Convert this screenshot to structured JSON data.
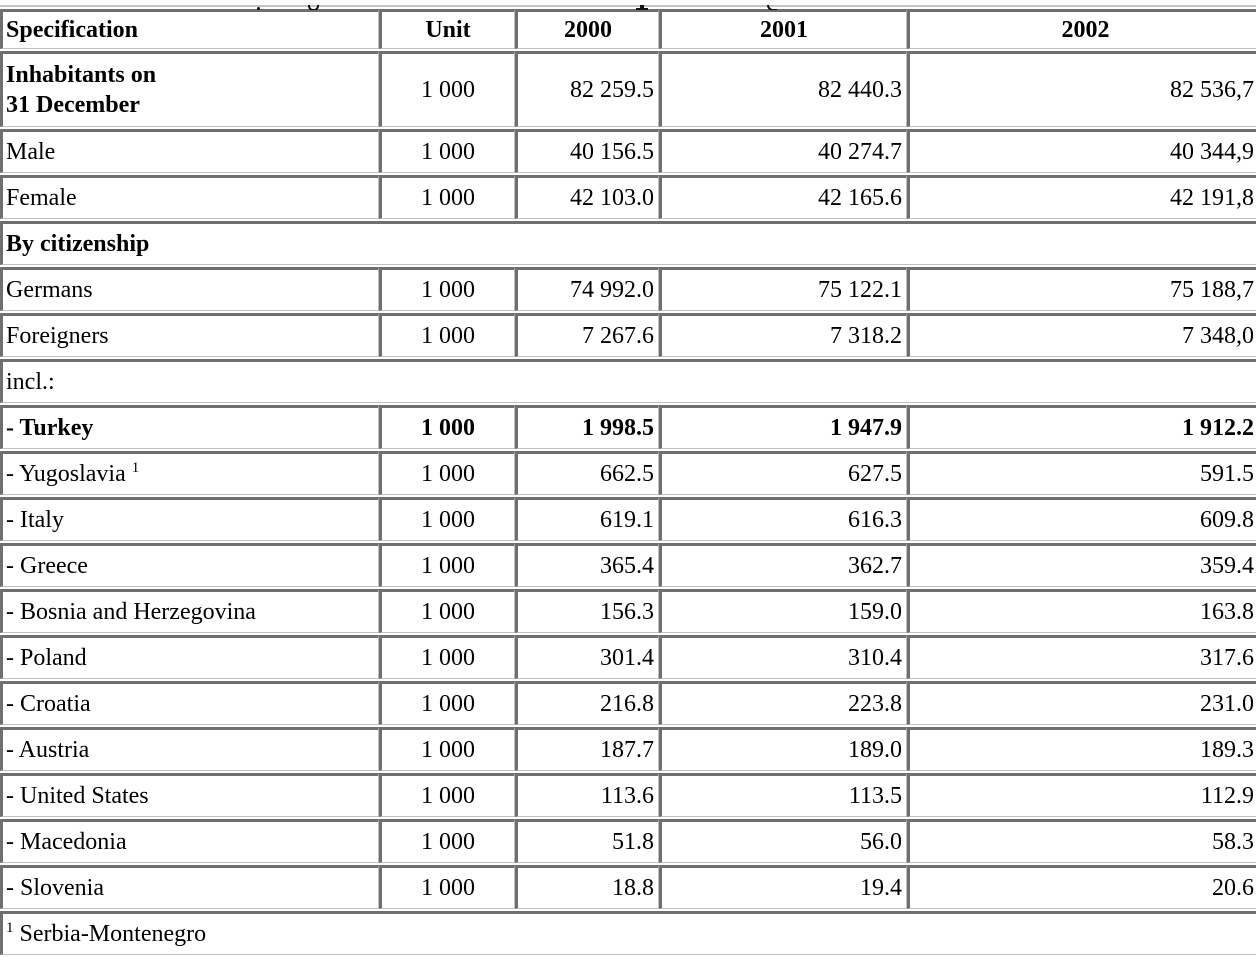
{
  "colors": {
    "border_dark": "#6f6f6f",
    "border_light": "#c0c0c0",
    "text": "#000000",
    "background": "#ffffff"
  },
  "table": {
    "columns": [
      "Specification",
      "Unit",
      "2000",
      "2001",
      "2002"
    ],
    "rows": [
      {
        "label": "Inhabitants on\n31 December",
        "unit": "1 000",
        "v2000": "82 259.5",
        "v2001": "82 440.3",
        "v2002": "82 536,7"
      },
      {
        "label": "Male",
        "unit": "1 000",
        "v2000": "40 156.5",
        "v2001": "40 274.7",
        "v2002": "40 344,9"
      },
      {
        "label": "Female",
        "unit": "1 000",
        "v2000": "42 103.0",
        "v2001": "42 165.6",
        "v2002": "42 191,8"
      },
      {
        "label": "By citizenship"
      },
      {
        "label": "Germans",
        "unit": "1 000",
        "v2000": "74 992.0",
        "v2001": "75 122.1",
        "v2002": "75 188,7"
      },
      {
        "label": "Foreigners",
        "unit": "1 000",
        "v2000": "7 267.6",
        "v2001": "7 318.2",
        "v2002": "7 348,0"
      },
      {
        "label": "incl.:"
      },
      {
        "label": "- Turkey",
        "unit": "1 000",
        "v2000": "1 998.5",
        "v2001": "1 947.9",
        "v2002": "1 912.2"
      },
      {
        "label": "- Yugoslavia",
        "sup": "1",
        "unit": "1 000",
        "v2000": "662.5",
        "v2001": "627.5",
        "v2002": "591.5"
      },
      {
        "label": "- Italy",
        "unit": "1 000",
        "v2000": "619.1",
        "v2001": "616.3",
        "v2002": "609.8"
      },
      {
        "label": "- Greece",
        "unit": "1 000",
        "v2000": "365.4",
        "v2001": "362.7",
        "v2002": "359.4"
      },
      {
        "label": "- Bosnia and Herzegovina",
        "unit": "1 000",
        "v2000": "156.3",
        "v2001": "159.0",
        "v2002": "163.8"
      },
      {
        "label": "- Poland",
        "unit": "1 000",
        "v2000": "301.4",
        "v2001": "310.4",
        "v2002": "317.6"
      },
      {
        "label": "- Croatia",
        "unit": "1 000",
        "v2000": "216.8",
        "v2001": "223.8",
        "v2002": "231.0"
      },
      {
        "label": "- Austria",
        "unit": "1 000",
        "v2000": "187.7",
        "v2001": "189.0",
        "v2002": "189.3"
      },
      {
        "label": "- United States",
        "unit": "1 000",
        "v2000": "113.6",
        "v2001": "113.5",
        "v2002": "112.9"
      },
      {
        "label": "- Macedonia",
        "unit": "1 000",
        "v2000": "51.8",
        "v2001": "56.0",
        "v2002": "58.3"
      },
      {
        "label": "- Slovenia",
        "unit": "1 000",
        "v2000": "18.8",
        "v2001": "19.4",
        "v2002": "20.6"
      }
    ],
    "footnote": {
      "marker": "1",
      "text": "Serbia-Montenegro"
    }
  }
}
